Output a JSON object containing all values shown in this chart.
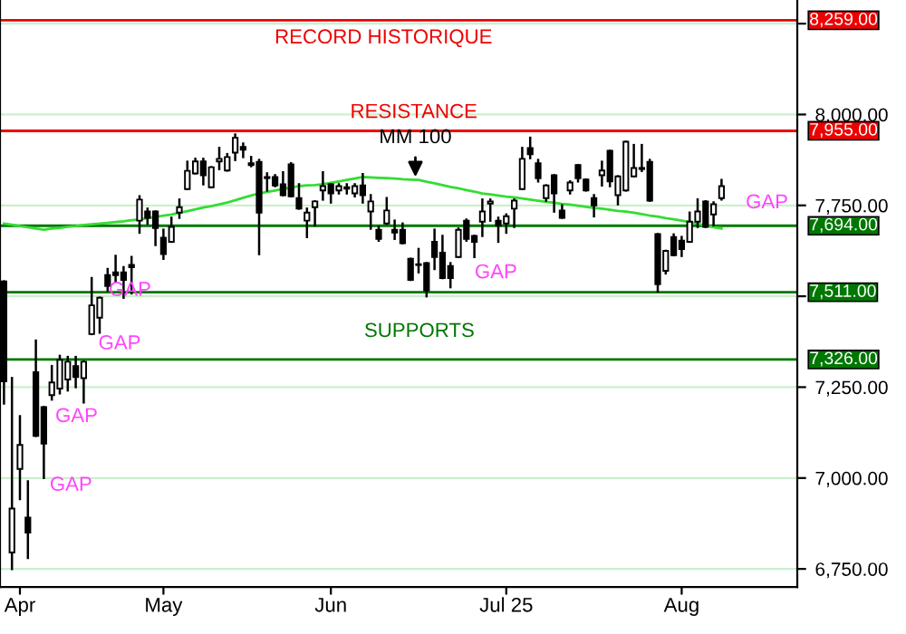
{
  "chart_data": {
    "type": "candlestick",
    "categories": [
      null,
      null,
      "Apr",
      null,
      null,
      null,
      null,
      null,
      null,
      null,
      null,
      null,
      null,
      null,
      null,
      null,
      null,
      null,
      null,
      null,
      "May",
      null,
      null,
      null,
      null,
      null,
      null,
      null,
      null,
      null,
      null,
      null,
      null,
      null,
      null,
      null,
      null,
      null,
      null,
      null,
      null,
      "Jun",
      null,
      null,
      null,
      null,
      null,
      null,
      null,
      null,
      null,
      null,
      null,
      null,
      null,
      null,
      null,
      null,
      null,
      null,
      null,
      null,
      null,
      "Jul 25",
      null,
      null,
      null,
      null,
      null,
      null,
      null,
      null,
      null,
      null,
      null,
      null,
      null,
      null,
      null,
      null,
      null,
      null,
      null,
      null,
      null,
      "Aug",
      null,
      null,
      null,
      null,
      null,
      null,
      null,
      null,
      null,
      null,
      null,
      null,
      null,
      null
    ],
    "ohlc": [
      [
        7541,
        7541,
        7205,
        7266
      ],
      [
        6795,
        7275,
        6750,
        6916
      ],
      [
        7025,
        7170,
        6942,
        7091
      ],
      [
        6891,
        6991,
        6780,
        6850
      ],
      [
        7291,
        7378,
        7116,
        7116
      ],
      [
        7195,
        7195,
        7000,
        7095
      ],
      [
        7228,
        7308,
        7216,
        7263
      ],
      [
        7246,
        7336,
        7233,
        7325
      ],
      [
        7271,
        7333,
        7241,
        7320
      ],
      [
        7308,
        7333,
        7250,
        7278
      ],
      [
        7275,
        7320,
        7208,
        7320
      ],
      [
        7396,
        7550,
        7396,
        7475
      ],
      [
        7441,
        7496,
        7400,
        7496
      ],
      [
        7558,
        7575,
        7516,
        7528
      ],
      [
        7566,
        7611,
        7541,
        7558
      ],
      [
        7566,
        7580,
        7496,
        7545
      ],
      [
        7586,
        7608,
        7508,
        7580
      ],
      [
        7708,
        7775,
        7675,
        7766
      ],
      [
        7733,
        7741,
        7700,
        7716
      ],
      [
        7733,
        7733,
        7641,
        7688
      ],
      [
        7661,
        7683,
        7603,
        7616
      ],
      [
        7650,
        7716,
        7650,
        7691
      ],
      [
        7730,
        7766,
        7716,
        7745
      ],
      [
        7795,
        7870,
        7795,
        7845
      ],
      [
        7838,
        7878,
        7838,
        7871
      ],
      [
        7871,
        7878,
        7808,
        7833
      ],
      [
        7800,
        7855,
        7800,
        7855
      ],
      [
        7871,
        7908,
        7850,
        7878
      ],
      [
        7846,
        7891,
        7846,
        7883
      ],
      [
        7895,
        7945,
        7875,
        7936
      ],
      [
        7911,
        7920,
        7883,
        7903
      ],
      [
        7866,
        7883,
        7858,
        7861
      ],
      [
        7870,
        7875,
        7616,
        7730
      ],
      [
        7825,
        7838,
        7791,
        7828
      ],
      [
        7828,
        7833,
        7803,
        7805
      ],
      [
        7808,
        7841,
        7778,
        7778
      ],
      [
        7863,
        7866,
        7775,
        7775
      ],
      [
        7770,
        7808,
        7741,
        7741
      ],
      [
        7708,
        7741,
        7663,
        7730
      ],
      [
        7745,
        7761,
        7695,
        7761
      ],
      [
        7791,
        7841,
        7766,
        7803
      ],
      [
        7808,
        7808,
        7758,
        7783
      ],
      [
        7791,
        7808,
        7783,
        7803
      ],
      [
        7800,
        7808,
        7783,
        7796
      ],
      [
        7783,
        7808,
        7775,
        7803
      ],
      [
        7805,
        7836,
        7758,
        7778
      ],
      [
        7733,
        7778,
        7686,
        7761
      ],
      [
        7683,
        7691,
        7653,
        7658
      ],
      [
        7700,
        7770,
        7700,
        7736
      ],
      [
        7683,
        7708,
        7658,
        7675
      ],
      [
        7683,
        7700,
        7646,
        7646
      ],
      [
        7603,
        7603,
        7545,
        7545
      ],
      [
        7588,
        7630,
        7566,
        7586
      ],
      [
        7591,
        7591,
        7500,
        7516
      ],
      [
        7650,
        7683,
        7575,
        7608
      ],
      [
        7620,
        7666,
        7550,
        7550
      ],
      [
        7583,
        7591,
        7525,
        7550
      ],
      [
        7608,
        7686,
        7608,
        7683
      ],
      [
        7708,
        7711,
        7653,
        7658
      ],
      [
        7666,
        7666,
        7608,
        7650
      ],
      [
        7705,
        7766,
        7666,
        7733
      ],
      [
        7755,
        7766,
        7708,
        7761
      ],
      [
        7708,
        7716,
        7650,
        7695
      ],
      [
        7700,
        7725,
        7675,
        7720
      ],
      [
        7741,
        7766,
        7691,
        7763
      ],
      [
        7795,
        7908,
        7795,
        7878
      ],
      [
        7908,
        7936,
        7880,
        7891
      ],
      [
        7866,
        7875,
        7816,
        7825
      ],
      [
        7770,
        7805,
        7763,
        7805
      ],
      [
        7833,
        7833,
        7733,
        7783
      ],
      [
        7736,
        7750,
        7716,
        7716
      ],
      [
        7791,
        7816,
        7783,
        7813
      ],
      [
        7861,
        7861,
        7816,
        7825
      ],
      [
        7821,
        7821,
        7791,
        7791
      ],
      [
        7770,
        7778,
        7720,
        7750
      ],
      [
        7833,
        7870,
        7805,
        7846
      ],
      [
        7900,
        7900,
        7803,
        7816
      ],
      [
        7778,
        7830,
        7753,
        7830
      ],
      [
        7791,
        7925,
        7791,
        7925
      ],
      [
        7830,
        7916,
        7830,
        7853
      ],
      [
        7853,
        7916,
        7845,
        7850
      ],
      [
        7870,
        7875,
        7763,
        7763
      ],
      [
        7671,
        7671,
        7513,
        7533
      ],
      [
        7570,
        7625,
        7563,
        7625
      ],
      [
        7663,
        7670,
        7613,
        7613
      ],
      [
        7653,
        7663,
        7611,
        7630
      ],
      [
        7650,
        7730,
        7650,
        7705
      ],
      [
        7705,
        7766,
        7691,
        7733
      ],
      [
        7761,
        7761,
        7691,
        7691
      ],
      [
        7725,
        7758,
        7695,
        7753
      ],
      [
        7770,
        7820,
        7766,
        7803
      ],
      null,
      null,
      null,
      null,
      null,
      null,
      null,
      null,
      null
    ],
    "series": [
      {
        "type": "line",
        "color": "#33dd33",
        "values": [
          7700,
          7697,
          7693,
          7690,
          7686,
          7683,
          7686,
          7688,
          7691,
          7693,
          7696,
          7698,
          7700,
          7702,
          7704,
          7706,
          7709,
          7711,
          7715,
          7718,
          7722,
          7725,
          7730,
          7734,
          7739,
          7744,
          7748,
          7753,
          7758,
          7764,
          7771,
          7777,
          7783,
          7787,
          7791,
          7795,
          7799,
          7803,
          7805,
          7806,
          7808,
          7812,
          7816,
          7820,
          7824,
          7828,
          7827,
          7826,
          7825,
          7824,
          7822,
          7821,
          7820,
          7815,
          7811,
          7806,
          7801,
          7797,
          7792,
          7788,
          7783,
          7780,
          7777,
          7774,
          7772,
          7769,
          7766,
          7763,
          7760,
          7757,
          7754,
          7752,
          7749,
          7746,
          7743,
          7741,
          7738,
          7735,
          7733,
          7730,
          7726,
          7722,
          7719,
          7715,
          7712,
          7708,
          7704,
          7699,
          7695,
          7690,
          7686,
          null,
          null,
          null,
          null,
          null,
          null,
          null,
          null,
          null
        ]
      }
    ],
    "ylim": [
      6700,
      8315
    ],
    "yticks": [
      {
        "value": 6750,
        "label": "6,750.00"
      },
      {
        "value": 7000,
        "label": "7,000.00"
      },
      {
        "value": 7250,
        "label": "7,250.00"
      },
      {
        "value": 7500,
        "label": null
      },
      {
        "value": 7750,
        "label": "7,750.00"
      },
      {
        "value": 8000,
        "label": "8,000.00"
      },
      {
        "value": 8250,
        "label": null
      }
    ],
    "grid": "y",
    "ref_lines": [
      {
        "axis": "y",
        "value": 8259,
        "label": "8,259.00",
        "color": "#ee0000"
      },
      {
        "axis": "y",
        "value": 7955,
        "label": "7,955.00",
        "color": "#ee0000"
      },
      {
        "axis": "y",
        "value": 7694,
        "label": "7,694.00",
        "color": "#007700"
      },
      {
        "axis": "y",
        "value": 7511,
        "label": "7,511.00",
        "color": "#007700"
      },
      {
        "axis": "y",
        "value": 7326,
        "label": "7,326.00",
        "color": "#007700"
      }
    ],
    "annotations": [
      "RECORD HISTORIQUE",
      "RESISTANCE",
      "SUPPORTS",
      "MM 100",
      "GAP",
      "GAP",
      "GAP",
      "GAP",
      "GAP",
      "GAP"
    ]
  }
}
